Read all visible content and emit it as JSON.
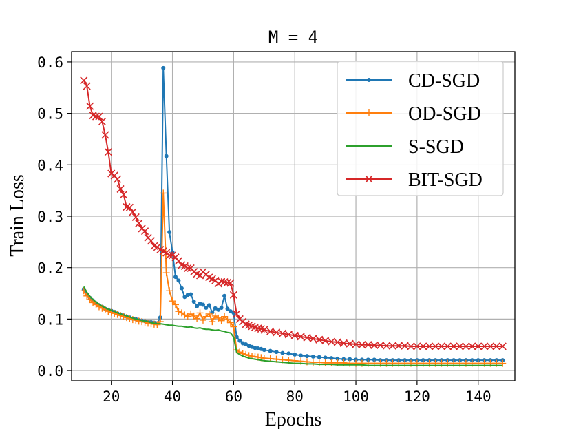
{
  "chart_data": {
    "type": "line",
    "title": "M = 4",
    "xlabel": "Epochs",
    "ylabel": "Train Loss",
    "xlim": [
      7,
      152
    ],
    "ylim": [
      -0.02,
      0.62
    ],
    "xticks": [
      20,
      40,
      60,
      80,
      100,
      120,
      140
    ],
    "xtick_labels": [
      "20",
      "40",
      "60",
      "80",
      "100",
      "120",
      "140"
    ],
    "yticks": [
      0.0,
      0.1,
      0.2,
      0.3,
      0.4,
      0.5,
      0.6
    ],
    "ytick_labels": [
      "0.0",
      "0.1",
      "0.2",
      "0.3",
      "0.4",
      "0.5",
      "0.6"
    ],
    "grid": true,
    "legend_position": "top-right",
    "series": [
      {
        "name": "CD-SGD",
        "color": "#1f77b4",
        "marker": "dot",
        "x": [
          11,
          12,
          13,
          14,
          15,
          16,
          17,
          18,
          19,
          20,
          21,
          22,
          23,
          24,
          25,
          26,
          27,
          28,
          29,
          30,
          31,
          32,
          33,
          34,
          35,
          36,
          37,
          38,
          39,
          40,
          41,
          42,
          43,
          44,
          45,
          46,
          47,
          48,
          49,
          50,
          51,
          52,
          53,
          54,
          55,
          56,
          57,
          58,
          59,
          60,
          61,
          62,
          63,
          64,
          65,
          66,
          67,
          68,
          69,
          70,
          72,
          74,
          76,
          78,
          80,
          82,
          84,
          86,
          88,
          90,
          92,
          94,
          96,
          98,
          100,
          102,
          104,
          106,
          108,
          110,
          112,
          114,
          116,
          118,
          120,
          122,
          124,
          126,
          128,
          130,
          132,
          134,
          136,
          138,
          140,
          142,
          144,
          146,
          148
        ],
        "values": [
          0.158,
          0.148,
          0.141,
          0.136,
          0.131,
          0.127,
          0.124,
          0.12,
          0.118,
          0.116,
          0.114,
          0.111,
          0.109,
          0.107,
          0.105,
          0.103,
          0.101,
          0.1,
          0.098,
          0.097,
          0.096,
          0.095,
          0.094,
          0.093,
          0.092,
          0.103,
          0.588,
          0.417,
          0.269,
          0.23,
          0.182,
          0.175,
          0.16,
          0.143,
          0.147,
          0.148,
          0.134,
          0.125,
          0.13,
          0.128,
          0.122,
          0.127,
          0.113,
          0.121,
          0.118,
          0.122,
          0.145,
          0.12,
          0.115,
          0.112,
          0.065,
          0.058,
          0.053,
          0.051,
          0.048,
          0.046,
          0.044,
          0.043,
          0.042,
          0.04,
          0.038,
          0.036,
          0.034,
          0.033,
          0.031,
          0.029,
          0.028,
          0.027,
          0.026,
          0.025,
          0.024,
          0.023,
          0.022,
          0.022,
          0.021,
          0.021,
          0.021,
          0.021,
          0.02,
          0.02,
          0.02,
          0.02,
          0.02,
          0.02,
          0.02,
          0.02,
          0.02,
          0.02,
          0.02,
          0.02,
          0.02,
          0.02,
          0.02,
          0.02,
          0.02,
          0.02,
          0.02,
          0.02,
          0.02
        ]
      },
      {
        "name": "OD-SGD",
        "color": "#ff7f0e",
        "marker": "plus",
        "x": [
          11,
          12,
          13,
          14,
          15,
          16,
          17,
          18,
          19,
          20,
          21,
          22,
          23,
          24,
          25,
          26,
          27,
          28,
          29,
          30,
          31,
          32,
          33,
          34,
          35,
          36,
          37,
          38,
          39,
          40,
          41,
          42,
          43,
          44,
          45,
          46,
          47,
          48,
          49,
          50,
          51,
          52,
          53,
          54,
          55,
          56,
          57,
          58,
          59,
          60,
          61,
          62,
          63,
          64,
          65,
          66,
          67,
          68,
          69,
          70,
          72,
          74,
          76,
          78,
          80,
          82,
          84,
          86,
          88,
          90,
          92,
          94,
          96,
          98,
          100,
          102,
          104,
          106,
          108,
          110,
          112,
          114,
          116,
          118,
          120,
          122,
          124,
          126,
          128,
          130,
          132,
          134,
          136,
          138,
          140,
          142,
          144,
          146,
          148
        ],
        "values": [
          0.155,
          0.145,
          0.138,
          0.132,
          0.128,
          0.124,
          0.121,
          0.118,
          0.115,
          0.113,
          0.111,
          0.109,
          0.107,
          0.105,
          0.103,
          0.101,
          0.099,
          0.098,
          0.096,
          0.095,
          0.094,
          0.092,
          0.091,
          0.09,
          0.089,
          0.095,
          0.345,
          0.19,
          0.155,
          0.135,
          0.128,
          0.115,
          0.112,
          0.108,
          0.105,
          0.11,
          0.106,
          0.101,
          0.112,
          0.098,
          0.105,
          0.11,
          0.095,
          0.106,
          0.102,
          0.097,
          0.105,
          0.099,
          0.093,
          0.085,
          0.04,
          0.036,
          0.033,
          0.031,
          0.029,
          0.028,
          0.027,
          0.026,
          0.025,
          0.024,
          0.023,
          0.022,
          0.021,
          0.02,
          0.019,
          0.018,
          0.017,
          0.016,
          0.016,
          0.015,
          0.015,
          0.015,
          0.015,
          0.014,
          0.014,
          0.014,
          0.014,
          0.014,
          0.014,
          0.014,
          0.014,
          0.014,
          0.014,
          0.014,
          0.014,
          0.014,
          0.014,
          0.014,
          0.014,
          0.014,
          0.014,
          0.014,
          0.014,
          0.014,
          0.014,
          0.014,
          0.014,
          0.014,
          0.014
        ]
      },
      {
        "name": "S-SGD",
        "color": "#2ca02c",
        "marker": "none",
        "x": [
          11,
          12,
          13,
          14,
          15,
          16,
          17,
          18,
          19,
          20,
          21,
          22,
          23,
          24,
          25,
          26,
          27,
          28,
          29,
          30,
          31,
          32,
          33,
          34,
          35,
          36,
          37,
          38,
          39,
          40,
          41,
          42,
          43,
          44,
          45,
          46,
          47,
          48,
          49,
          50,
          51,
          52,
          53,
          54,
          55,
          56,
          57,
          58,
          59,
          60,
          61,
          62,
          63,
          64,
          65,
          66,
          67,
          68,
          69,
          70,
          72,
          74,
          76,
          78,
          80,
          82,
          84,
          86,
          88,
          90,
          92,
          94,
          96,
          98,
          100,
          102,
          104,
          106,
          108,
          110,
          112,
          114,
          116,
          118,
          120,
          122,
          124,
          126,
          128,
          130,
          132,
          134,
          136,
          138,
          140,
          142,
          144,
          146,
          148
        ],
        "values": [
          0.163,
          0.152,
          0.144,
          0.138,
          0.133,
          0.129,
          0.125,
          0.122,
          0.119,
          0.117,
          0.115,
          0.112,
          0.11,
          0.108,
          0.106,
          0.104,
          0.102,
          0.1,
          0.099,
          0.097,
          0.096,
          0.095,
          0.093,
          0.092,
          0.091,
          0.091,
          0.09,
          0.089,
          0.088,
          0.088,
          0.087,
          0.086,
          0.086,
          0.085,
          0.084,
          0.085,
          0.083,
          0.082,
          0.083,
          0.081,
          0.08,
          0.08,
          0.079,
          0.078,
          0.079,
          0.077,
          0.076,
          0.074,
          0.073,
          0.065,
          0.035,
          0.031,
          0.028,
          0.026,
          0.024,
          0.023,
          0.022,
          0.021,
          0.02,
          0.019,
          0.018,
          0.017,
          0.016,
          0.015,
          0.014,
          0.014,
          0.013,
          0.013,
          0.012,
          0.012,
          0.012,
          0.011,
          0.011,
          0.011,
          0.011,
          0.011,
          0.01,
          0.01,
          0.01,
          0.01,
          0.01,
          0.01,
          0.01,
          0.01,
          0.01,
          0.01,
          0.01,
          0.01,
          0.01,
          0.01,
          0.01,
          0.01,
          0.01,
          0.01,
          0.01,
          0.01,
          0.01,
          0.01,
          0.01
        ]
      },
      {
        "name": "BIT-SGD",
        "color": "#d62728",
        "marker": "x",
        "x": [
          11,
          12,
          13,
          14,
          15,
          16,
          17,
          18,
          19,
          20,
          21,
          22,
          23,
          24,
          25,
          26,
          27,
          28,
          29,
          30,
          31,
          32,
          33,
          34,
          35,
          36,
          37,
          38,
          39,
          40,
          41,
          42,
          43,
          44,
          45,
          46,
          47,
          48,
          49,
          50,
          51,
          52,
          53,
          54,
          55,
          56,
          57,
          58,
          59,
          60,
          61,
          62,
          63,
          64,
          65,
          66,
          67,
          68,
          69,
          70,
          72,
          74,
          76,
          78,
          80,
          82,
          84,
          86,
          88,
          90,
          92,
          94,
          96,
          98,
          100,
          102,
          104,
          106,
          108,
          110,
          112,
          114,
          116,
          118,
          120,
          122,
          124,
          126,
          128,
          130,
          132,
          134,
          136,
          138,
          140,
          142,
          144,
          146,
          148
        ],
        "values": [
          0.564,
          0.553,
          0.514,
          0.496,
          0.494,
          0.494,
          0.484,
          0.458,
          0.425,
          0.383,
          0.379,
          0.372,
          0.353,
          0.342,
          0.318,
          0.317,
          0.308,
          0.298,
          0.286,
          0.276,
          0.271,
          0.258,
          0.252,
          0.242,
          0.24,
          0.235,
          0.232,
          0.229,
          0.224,
          0.224,
          0.22,
          0.213,
          0.205,
          0.203,
          0.199,
          0.199,
          0.192,
          0.188,
          0.185,
          0.192,
          0.187,
          0.181,
          0.178,
          0.175,
          0.169,
          0.173,
          0.172,
          0.171,
          0.17,
          0.147,
          0.11,
          0.1,
          0.095,
          0.09,
          0.088,
          0.086,
          0.084,
          0.082,
          0.081,
          0.079,
          0.076,
          0.074,
          0.072,
          0.07,
          0.068,
          0.066,
          0.064,
          0.062,
          0.06,
          0.058,
          0.056,
          0.055,
          0.053,
          0.052,
          0.051,
          0.05,
          0.05,
          0.049,
          0.049,
          0.048,
          0.048,
          0.048,
          0.048,
          0.047,
          0.047,
          0.047,
          0.047,
          0.047,
          0.047,
          0.047,
          0.047,
          0.047,
          0.047,
          0.047,
          0.047,
          0.047,
          0.047,
          0.047,
          0.047
        ]
      }
    ]
  }
}
